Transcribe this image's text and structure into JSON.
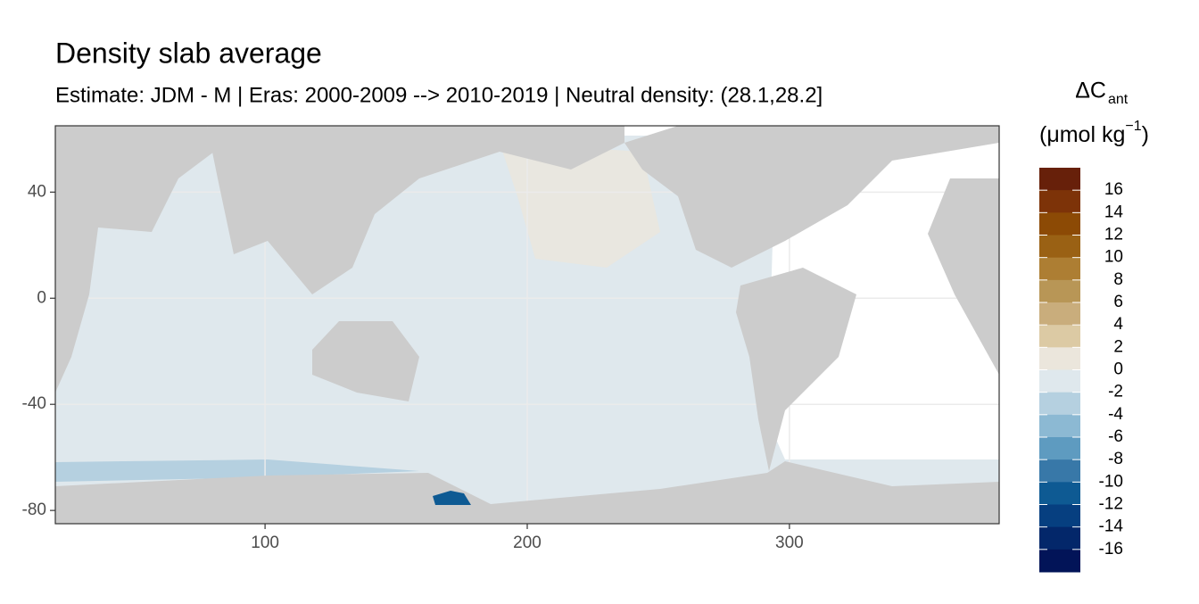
{
  "chart_data": {
    "type": "raster",
    "title": "Density slab average",
    "subtitle": "Estimate: JDM - M | Eras: 2000-2009 --> 2010-2019 | Neutral density: (28.1,28.2]",
    "xlim": [
      20,
      380
    ],
    "xticks": [
      100,
      200,
      300
    ],
    "ylim": [
      -85,
      65
    ],
    "yticks": [
      40,
      0,
      -40,
      -80
    ],
    "grid": true,
    "legend_title": {
      "symbol": "ΔC",
      "subscript": "ant",
      "unit_open": "(μmol kg",
      "unit_exponent": "−1",
      "unit_close": ")"
    },
    "colorbar_lim": [
      -18,
      18
    ],
    "colorbar_ticks": [
      16,
      14,
      12,
      10,
      8,
      6,
      4,
      2,
      0,
      -2,
      -4,
      -6,
      -8,
      -10,
      -12,
      -14,
      -16
    ],
    "colorbar_colors": [
      "#67200a",
      "#7d3308",
      "#8c4a05",
      "#9a6114",
      "#ad7e33",
      "#b89656",
      "#c9ad7c",
      "#dccaa4",
      "#ebe6dc",
      "#dfe8ed",
      "#b5d0e0",
      "#8cb9d3",
      "#5e9bc0",
      "#3878a8",
      "#0e5a93",
      "#063f80",
      "#03276a",
      "#021458"
    ]
  }
}
